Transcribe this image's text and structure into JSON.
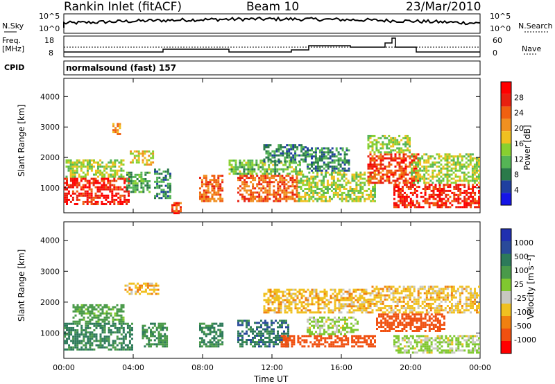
{
  "header": {
    "station": "Rankin Inlet (fitACF)",
    "beam": "Beam 10",
    "date": "23/Mar/2010"
  },
  "top_panels": {
    "nsky_label": "N.Sky",
    "nsky_ticks": [
      "10^5",
      "10^0"
    ],
    "nsearch_label": "N.Search",
    "nsearch_ticks": [
      "10^5",
      "10^0"
    ],
    "freq_label": "Freq.",
    "freq_unit": "[MHz]",
    "freq_ticks": [
      "18",
      "8"
    ],
    "nave_label": "Nave",
    "nave_ticks": [
      "60",
      "0"
    ],
    "cpid_label": "CPID",
    "cpid_value": "normalsound (fast) 157"
  },
  "colors": {
    "power_scale": [
      "#1515e6",
      "#1f3f9f",
      "#2a7a4a",
      "#55b555",
      "#88d030",
      "#f0c020",
      "#f09020",
      "#f06010",
      "#e82010",
      "#ff0000"
    ],
    "velocity_scale": [
      "#2030b0",
      "#2a4a9a",
      "#2d7a5a",
      "#4a9a4a",
      "#80c830",
      "#c8c8c0",
      "#f0c020",
      "#f08010",
      "#f05010",
      "#ff0000"
    ],
    "ground_scatter": "#c8c8c0"
  },
  "chart_data": [
    {
      "type": "heatmap",
      "panel": "power",
      "xlabel": "Time UT",
      "ylabel": "Slant Range [km]",
      "x_ticks": [
        "00:00",
        "04:00",
        "08:00",
        "12:00",
        "16:00",
        "20:00",
        "00:00"
      ],
      "xlim": [
        0,
        24
      ],
      "y_ticks": [
        "1000",
        "2000",
        "3000",
        "4000"
      ],
      "ylim": [
        180,
        4600
      ],
      "colorbar_label": "Power [dB]",
      "colorbar_ticks": [
        "28",
        "24",
        "20",
        "16",
        "12",
        "8",
        "4"
      ],
      "regions": [
        {
          "t0": 0.0,
          "t1": 3.8,
          "r0": 500,
          "r1": 1400,
          "v": 26
        },
        {
          "t0": 0.1,
          "t1": 3.5,
          "r0": 1400,
          "r1": 2000,
          "v": 14
        },
        {
          "t0": 2.8,
          "t1": 3.3,
          "r0": 2800,
          "r1": 3200,
          "v": 20
        },
        {
          "t0": 3.6,
          "t1": 5.0,
          "r0": 900,
          "r1": 1600,
          "v": 10
        },
        {
          "t0": 3.8,
          "t1": 5.2,
          "r0": 1800,
          "r1": 2300,
          "v": 16
        },
        {
          "t0": 5.2,
          "t1": 6.2,
          "r0": 700,
          "r1": 1700,
          "v": 8
        },
        {
          "t0": 6.2,
          "t1": 6.8,
          "r0": 200,
          "r1": 600,
          "v": 24
        },
        {
          "t0": 7.8,
          "t1": 9.2,
          "r0": 600,
          "r1": 1500,
          "v": 22
        },
        {
          "t0": 10.0,
          "t1": 13.5,
          "r0": 600,
          "r1": 1500,
          "v": 22
        },
        {
          "t0": 9.5,
          "t1": 13.8,
          "r0": 1500,
          "r1": 2000,
          "v": 12
        },
        {
          "t0": 11.5,
          "t1": 14.0,
          "r0": 1900,
          "r1": 2500,
          "v": 8
        },
        {
          "t0": 13.5,
          "t1": 18.0,
          "r0": 600,
          "r1": 1600,
          "v": 14
        },
        {
          "t0": 14.0,
          "t1": 16.5,
          "r0": 1600,
          "r1": 2400,
          "v": 8
        },
        {
          "t0": 17.5,
          "t1": 20.5,
          "r0": 1200,
          "r1": 2200,
          "v": 24
        },
        {
          "t0": 17.5,
          "t1": 20.0,
          "r0": 2200,
          "r1": 2800,
          "v": 14
        },
        {
          "t0": 19.0,
          "t1": 24.0,
          "r0": 400,
          "r1": 1200,
          "v": 26
        },
        {
          "t0": 20.0,
          "t1": 24.0,
          "r0": 1200,
          "r1": 2200,
          "v": 14
        }
      ]
    },
    {
      "type": "heatmap",
      "panel": "velocity",
      "xlabel": "Time UT",
      "ylabel": "Slant Range [km]",
      "x_ticks": [
        "00:00",
        "04:00",
        "08:00",
        "12:00",
        "16:00",
        "20:00",
        "00:00"
      ],
      "xlim": [
        0,
        24
      ],
      "y_ticks": [
        "1000",
        "2000",
        "3000",
        "4000"
      ],
      "ylim": [
        180,
        4600
      ],
      "colorbar_label": "Velocity [m s⁻¹]",
      "colorbar_ticks": [
        "1000",
        "500",
        "100",
        "25",
        "-25",
        "-100",
        "-500",
        "-1000"
      ],
      "regions": [
        {
          "t0": 0.0,
          "t1": 4.0,
          "r0": 500,
          "r1": 1400,
          "v": 300
        },
        {
          "t0": 0.5,
          "t1": 3.5,
          "r0": 1400,
          "r1": 2000,
          "v": 150
        },
        {
          "t0": 3.5,
          "t1": 5.5,
          "r0": 2300,
          "r1": 2700,
          "v": 0
        },
        {
          "t0": 4.5,
          "t1": 6.0,
          "r0": 600,
          "r1": 1400,
          "v": 200
        },
        {
          "t0": 7.8,
          "t1": 9.2,
          "r0": 600,
          "r1": 1400,
          "v": 300
        },
        {
          "t0": 10.0,
          "t1": 13.0,
          "r0": 600,
          "r1": 1500,
          "v": 400
        },
        {
          "t0": 11.5,
          "t1": 17.5,
          "r0": 1700,
          "r1": 2500,
          "v": 0
        },
        {
          "t0": 12.5,
          "t1": 18.0,
          "r0": 600,
          "r1": 1000,
          "v": -200
        },
        {
          "t0": 14.0,
          "t1": 17.0,
          "r0": 1000,
          "r1": 1600,
          "v": 60
        },
        {
          "t0": 17.5,
          "t1": 24.0,
          "r0": 1700,
          "r1": 2600,
          "v": 0
        },
        {
          "t0": 18.0,
          "t1": 22.0,
          "r0": 1100,
          "r1": 1700,
          "v": -200
        },
        {
          "t0": 19.0,
          "t1": 24.0,
          "r0": 400,
          "r1": 1000,
          "v": 60
        }
      ]
    }
  ]
}
